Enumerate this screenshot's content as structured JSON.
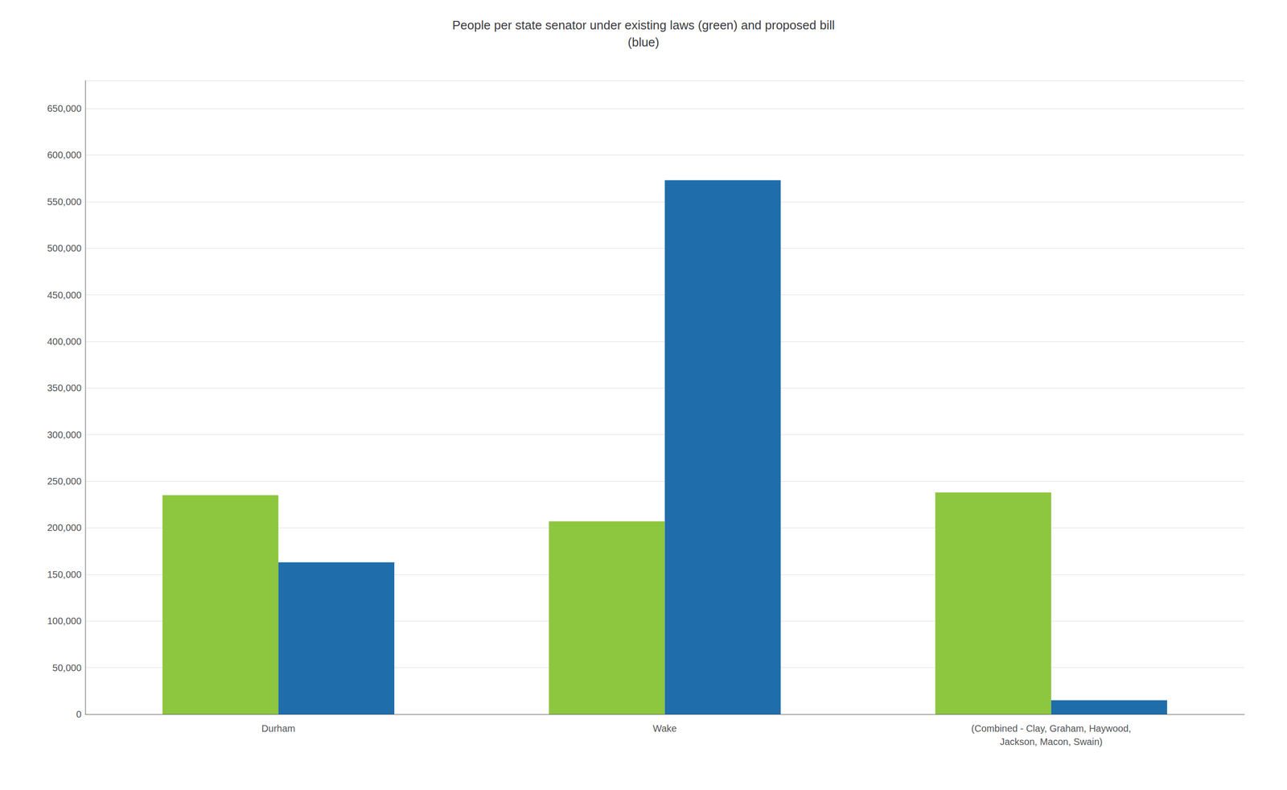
{
  "chart_data": {
    "type": "bar",
    "title": "People per state senator under existing laws (green) and proposed bill\n(blue)",
    "categories": [
      "Durham",
      "Wake",
      "(Combined - Clay, Graham, Haywood,\nJackson, Macon, Swain)"
    ],
    "series": [
      {
        "color": "#8DC63F",
        "values": [
          235000,
          207000,
          238000
        ]
      },
      {
        "color": "#1F6DAA",
        "values": [
          163000,
          573000,
          15000
        ]
      }
    ],
    "ylim": [
      0,
      680000
    ],
    "yticks": [
      0,
      {
        "value": 50000,
        "label": "50,000"
      },
      {
        "value": 100000,
        "label": "100,000"
      },
      {
        "value": 150000,
        "label": "150,000"
      },
      {
        "value": 200000,
        "label": "200,000"
      },
      {
        "value": 250000,
        "label": "250,000"
      },
      {
        "value": 300000,
        "label": "300,000"
      },
      {
        "value": 350000,
        "label": "350,000"
      },
      {
        "value": 400000,
        "label": "400,000"
      },
      {
        "value": 450000,
        "label": "450,000"
      },
      {
        "value": 500000,
        "label": "500,000"
      },
      {
        "value": 550000,
        "label": "550,000"
      },
      {
        "value": 600000,
        "label": "600,000"
      },
      {
        "value": 650000,
        "label": "650,000"
      }
    ],
    "grid": true
  }
}
